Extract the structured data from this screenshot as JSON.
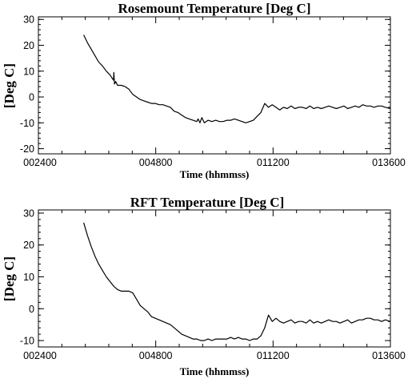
{
  "chart_data": [
    {
      "type": "line",
      "title": "Rosemount Temperature [Deg C]",
      "xlabel": "Time (hhmmss)",
      "ylabel": "[Deg C]",
      "xlim": [
        2400,
        13600
      ],
      "ylim": [
        -22,
        31
      ],
      "x_ticks": [
        "002400",
        "004800",
        "011200",
        "013600"
      ],
      "y_ticks": [
        -20,
        -10,
        0,
        10,
        20,
        30
      ],
      "grid": false,
      "series": [
        {
          "x": [
            3840,
            3960,
            4080,
            4200,
            4320,
            4440,
            4560,
            4680,
            4760,
            4790,
            4800,
            4820,
            4860,
            4920,
            5040,
            5160,
            5280,
            5400,
            5520,
            5640,
            5760,
            5880,
            6000,
            6120,
            6240,
            6360,
            6480,
            6600,
            6720,
            6840,
            6960,
            7080,
            7200,
            7320,
            7440,
            7480,
            7540,
            7600,
            7680,
            7800,
            7920,
            8040,
            8160,
            8280,
            8400,
            8520,
            8640,
            8760,
            8880,
            9000,
            9120,
            9240,
            9360,
            9480,
            9600,
            9720,
            9840,
            9960,
            10080,
            10200,
            10320,
            10440,
            10560,
            10680,
            10800,
            10920,
            11040,
            11160,
            11280,
            11400,
            11520,
            11640,
            11760,
            11880,
            12000,
            12120,
            12240,
            12360,
            12480,
            12600,
            12720,
            12840,
            12960,
            13080,
            13200,
            13320,
            13440,
            13600
          ],
          "y": [
            24,
            21,
            18.5,
            16,
            13.5,
            12,
            10,
            8.5,
            7,
            6.5,
            9.5,
            5,
            6,
            4.5,
            4.5,
            4,
            3,
            1,
            0,
            -1,
            -1.5,
            -2,
            -2.5,
            -2.5,
            -3,
            -3,
            -3.5,
            -4,
            -5.5,
            -6,
            -7,
            -8,
            -8.5,
            -9,
            -9.5,
            -8.5,
            -10,
            -8,
            -10,
            -9,
            -9.5,
            -9,
            -9.5,
            -9.5,
            -9,
            -9,
            -8.5,
            -9,
            -9.5,
            -10,
            -9.5,
            -9,
            -7.5,
            -6,
            -2.5,
            -4,
            -3,
            -4,
            -5,
            -4,
            -4.5,
            -3.5,
            -4.5,
            -4,
            -4,
            -4.5,
            -3.5,
            -4.5,
            -4,
            -4.5,
            -4,
            -3.5,
            -4,
            -4.5,
            -4,
            -3.5,
            -4.5,
            -4,
            -3.5,
            -4,
            -3,
            -3.5,
            -3.5,
            -4,
            -3.5,
            -3.5,
            -4,
            -4.5
          ]
        }
      ]
    },
    {
      "type": "line",
      "title": "RFT Temperature [Deg C]",
      "xlabel": "Time (hhmmss)",
      "ylabel": "[Deg C]",
      "xlim": [
        2400,
        13600
      ],
      "ylim": [
        -12,
        31
      ],
      "x_ticks": [
        "002400",
        "004800",
        "011200",
        "013600"
      ],
      "y_ticks": [
        -10,
        0,
        10,
        20,
        30
      ],
      "grid": false,
      "series": [
        {
          "x": [
            3840,
            3960,
            4080,
            4200,
            4320,
            4440,
            4560,
            4680,
            4800,
            4920,
            5040,
            5160,
            5280,
            5400,
            5520,
            5640,
            5760,
            5880,
            6000,
            6120,
            6240,
            6360,
            6480,
            6600,
            6720,
            6840,
            6960,
            7080,
            7200,
            7320,
            7440,
            7560,
            7680,
            7800,
            7920,
            8040,
            8160,
            8280,
            8400,
            8520,
            8640,
            8760,
            8880,
            9000,
            9120,
            9240,
            9360,
            9480,
            9600,
            9720,
            9840,
            9960,
            10080,
            10200,
            10320,
            10440,
            10560,
            10680,
            10800,
            10920,
            11040,
            11160,
            11280,
            11400,
            11520,
            11640,
            11760,
            11880,
            12000,
            12120,
            12240,
            12360,
            12480,
            12600,
            12720,
            12840,
            12960,
            13080,
            13200,
            13320,
            13440,
            13600
          ],
          "y": [
            27,
            23,
            19.5,
            16.5,
            14,
            12,
            10,
            8.5,
            7,
            6,
            5.5,
            5.5,
            5.5,
            5,
            3,
            1,
            0,
            -1,
            -2.5,
            -3,
            -3.5,
            -4,
            -4.5,
            -5,
            -6,
            -7,
            -8,
            -8.5,
            -9,
            -9.5,
            -9.5,
            -10,
            -10,
            -9.5,
            -10,
            -9.5,
            -9.5,
            -9.5,
            -9.5,
            -9,
            -9.5,
            -9,
            -9.5,
            -9.5,
            -10,
            -9.5,
            -9.5,
            -8.5,
            -6,
            -2,
            -4,
            -3,
            -4,
            -4.5,
            -4,
            -3.5,
            -4.5,
            -4,
            -4,
            -4.5,
            -3.5,
            -4.5,
            -4,
            -4.5,
            -4,
            -3.5,
            -4,
            -4,
            -4.5,
            -4,
            -3.5,
            -4.5,
            -4,
            -3.5,
            -3.5,
            -3,
            -3,
            -3.5,
            -3.5,
            -4,
            -3.5,
            -4
          ]
        }
      ]
    }
  ]
}
